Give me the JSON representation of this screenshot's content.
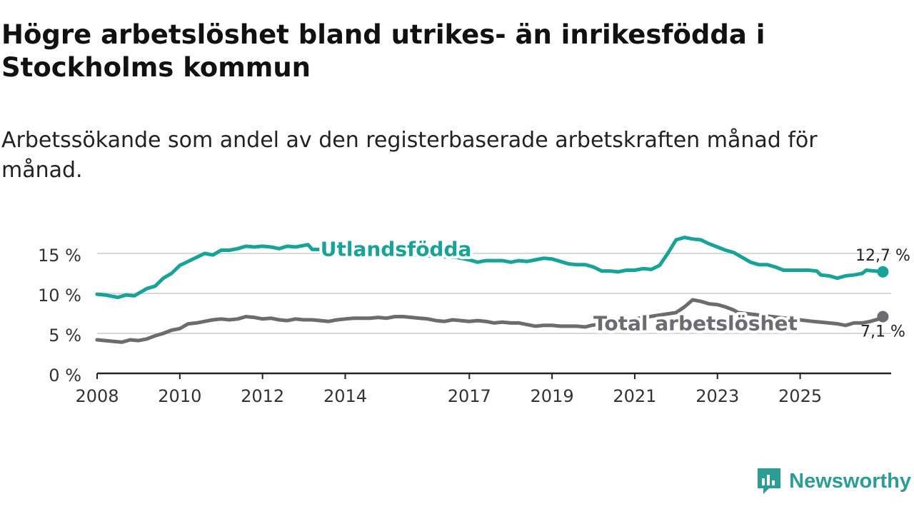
{
  "title": "Högre arbetslöshet bland utrikes- än inrikesfödda i Stockholms kommun",
  "subtitle": "Arbetssökande som andel av den registerbaserade arbetskraften månad för månad.",
  "brand": "Newsworthy",
  "colors": {
    "utlandsfodda": "#17a398",
    "total": "#6b6b70",
    "grid": "#d9d9d9",
    "axis": "#222222"
  },
  "chart_data": {
    "type": "line",
    "title": "Högre arbetslöshet bland utrikes- än inrikesfödda i Stockholms kommun",
    "xlabel": "",
    "ylabel": "",
    "xlim": [
      2008.0,
      2027.2
    ],
    "ylim": [
      0,
      15
    ],
    "y_ticks": [
      0,
      5,
      10,
      15
    ],
    "y_tick_labels": [
      "0 %",
      "5 %",
      "10 %",
      "15 %"
    ],
    "x_ticks": [
      2008,
      2010,
      2012,
      2014,
      2017,
      2019,
      2021,
      2023,
      2025
    ],
    "x_tick_labels": [
      "2008",
      "2010",
      "2012",
      "2014",
      "2017",
      "2019",
      "2021",
      "2023",
      "2025"
    ],
    "grid": true,
    "series": [
      {
        "name": "Utlandsfödda",
        "end_label": "12,7 %",
        "points": [
          [
            2008.0,
            9.9
          ],
          [
            2008.2,
            9.8
          ],
          [
            2008.4,
            9.6
          ],
          [
            2008.5,
            9.5
          ],
          [
            2008.7,
            9.8
          ],
          [
            2008.9,
            9.7
          ],
          [
            2009.0,
            10.0
          ],
          [
            2009.2,
            10.6
          ],
          [
            2009.4,
            10.9
          ],
          [
            2009.6,
            11.9
          ],
          [
            2009.8,
            12.5
          ],
          [
            2010.0,
            13.5
          ],
          [
            2010.2,
            14.0
          ],
          [
            2010.4,
            14.5
          ],
          [
            2010.6,
            15.0
          ],
          [
            2010.8,
            14.8
          ],
          [
            2011.0,
            15.4
          ],
          [
            2011.2,
            15.4
          ],
          [
            2011.4,
            15.6
          ],
          [
            2011.6,
            15.9
          ],
          [
            2011.8,
            15.8
          ],
          [
            2012.0,
            15.9
          ],
          [
            2012.2,
            15.8
          ],
          [
            2012.4,
            15.6
          ],
          [
            2012.6,
            15.9
          ],
          [
            2012.8,
            15.8
          ],
          [
            2013.0,
            16.0
          ],
          [
            2013.1,
            16.1
          ],
          [
            2013.2,
            15.5
          ],
          [
            2013.35,
            15.5
          ],
          [
            2016.7,
            14.5
          ],
          [
            2017.0,
            14.2
          ],
          [
            2017.2,
            13.9
          ],
          [
            2017.4,
            14.1
          ],
          [
            2017.6,
            14.1
          ],
          [
            2017.8,
            14.1
          ],
          [
            2018.0,
            13.9
          ],
          [
            2018.2,
            14.1
          ],
          [
            2018.4,
            14.0
          ],
          [
            2018.6,
            14.2
          ],
          [
            2018.8,
            14.4
          ],
          [
            2019.0,
            14.3
          ],
          [
            2019.2,
            14.0
          ],
          [
            2019.4,
            13.7
          ],
          [
            2019.6,
            13.6
          ],
          [
            2019.8,
            13.6
          ],
          [
            2020.0,
            13.3
          ],
          [
            2020.2,
            12.8
          ],
          [
            2020.4,
            12.8
          ],
          [
            2020.6,
            12.7
          ],
          [
            2020.8,
            12.9
          ],
          [
            2021.0,
            12.9
          ],
          [
            2021.2,
            13.1
          ],
          [
            2021.4,
            13.0
          ],
          [
            2021.6,
            13.5
          ],
          [
            2021.8,
            15.0
          ],
          [
            2022.0,
            16.7
          ],
          [
            2022.2,
            17.0
          ],
          [
            2022.4,
            16.8
          ],
          [
            2022.6,
            16.7
          ],
          [
            2022.8,
            16.2
          ],
          [
            2023.0,
            15.8
          ],
          [
            2023.2,
            15.4
          ],
          [
            2023.4,
            15.1
          ],
          [
            2023.6,
            14.5
          ],
          [
            2023.8,
            13.9
          ],
          [
            2024.0,
            13.6
          ],
          [
            2024.2,
            13.6
          ],
          [
            2024.4,
            13.3
          ],
          [
            2024.6,
            12.9
          ],
          [
            2024.8,
            12.9
          ],
          [
            2025.0,
            12.9
          ],
          [
            2025.2,
            12.9
          ],
          [
            2025.4,
            12.8
          ],
          [
            2025.5,
            12.3
          ],
          [
            2025.7,
            12.2
          ],
          [
            2025.9,
            11.9
          ],
          [
            2026.1,
            12.2
          ],
          [
            2026.3,
            12.3
          ],
          [
            2026.5,
            12.5
          ],
          [
            2026.6,
            12.9
          ],
          [
            2026.8,
            12.8
          ],
          [
            2027.0,
            12.7
          ]
        ]
      },
      {
        "name": "Total arbetslöshet",
        "end_label": "7,1 %",
        "points": [
          [
            2008.0,
            4.2
          ],
          [
            2008.2,
            4.1
          ],
          [
            2008.4,
            4.0
          ],
          [
            2008.6,
            3.9
          ],
          [
            2008.8,
            4.2
          ],
          [
            2009.0,
            4.1
          ],
          [
            2009.2,
            4.3
          ],
          [
            2009.4,
            4.7
          ],
          [
            2009.6,
            5.0
          ],
          [
            2009.8,
            5.4
          ],
          [
            2010.0,
            5.6
          ],
          [
            2010.2,
            6.2
          ],
          [
            2010.4,
            6.3
          ],
          [
            2010.6,
            6.5
          ],
          [
            2010.8,
            6.7
          ],
          [
            2011.0,
            6.8
          ],
          [
            2011.2,
            6.7
          ],
          [
            2011.4,
            6.8
          ],
          [
            2011.6,
            7.1
          ],
          [
            2011.8,
            7.0
          ],
          [
            2012.0,
            6.8
          ],
          [
            2012.2,
            6.9
          ],
          [
            2012.4,
            6.7
          ],
          [
            2012.6,
            6.6
          ],
          [
            2012.8,
            6.8
          ],
          [
            2013.0,
            6.7
          ],
          [
            2013.2,
            6.7
          ],
          [
            2013.4,
            6.6
          ],
          [
            2013.6,
            6.5
          ],
          [
            2013.8,
            6.7
          ],
          [
            2014.0,
            6.8
          ],
          [
            2014.2,
            6.9
          ],
          [
            2014.4,
            6.9
          ],
          [
            2014.6,
            6.9
          ],
          [
            2014.8,
            7.0
          ],
          [
            2015.0,
            6.9
          ],
          [
            2015.2,
            7.1
          ],
          [
            2015.4,
            7.1
          ],
          [
            2015.6,
            7.0
          ],
          [
            2015.8,
            6.9
          ],
          [
            2016.0,
            6.8
          ],
          [
            2016.2,
            6.6
          ],
          [
            2016.4,
            6.5
          ],
          [
            2016.6,
            6.7
          ],
          [
            2016.8,
            6.6
          ],
          [
            2017.0,
            6.5
          ],
          [
            2017.2,
            6.6
          ],
          [
            2017.4,
            6.5
          ],
          [
            2017.6,
            6.3
          ],
          [
            2017.8,
            6.4
          ],
          [
            2018.0,
            6.3
          ],
          [
            2018.2,
            6.3
          ],
          [
            2018.4,
            6.1
          ],
          [
            2018.6,
            5.9
          ],
          [
            2018.8,
            6.0
          ],
          [
            2019.0,
            6.0
          ],
          [
            2019.2,
            5.9
          ],
          [
            2019.4,
            5.9
          ],
          [
            2019.6,
            5.9
          ],
          [
            2019.8,
            5.8
          ],
          [
            2019.95,
            6.0
          ],
          [
            2022.0,
            7.6
          ],
          [
            2022.2,
            8.3
          ],
          [
            2022.4,
            9.2
          ],
          [
            2022.6,
            9.0
          ],
          [
            2022.8,
            8.7
          ],
          [
            2023.0,
            8.6
          ],
          [
            2023.2,
            8.3
          ],
          [
            2023.4,
            7.9
          ],
          [
            2023.5,
            7.6
          ],
          [
            2025.3,
            6.5
          ],
          [
            2025.5,
            6.4
          ],
          [
            2025.7,
            6.3
          ],
          [
            2025.9,
            6.2
          ],
          [
            2026.1,
            6.0
          ],
          [
            2026.3,
            6.3
          ],
          [
            2026.5,
            6.3
          ],
          [
            2026.7,
            6.5
          ],
          [
            2026.9,
            6.8
          ],
          [
            2027.0,
            7.1
          ]
        ]
      }
    ],
    "annotations": [
      {
        "text": "Utlandsfödda",
        "series": "Utlandsfödda",
        "at_x": 2013.4,
        "at_y": 15.6
      },
      {
        "text": "Total arbetslöshet",
        "series": "Total arbetslöshet",
        "at_x": 2020.0,
        "at_y": 6.3
      }
    ]
  }
}
